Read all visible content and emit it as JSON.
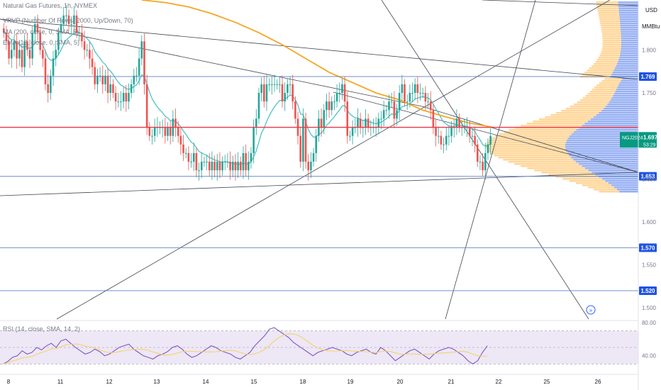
{
  "legend": {
    "symbol": "Natural Gas Futures, 1h, NYMEX",
    "vrvp": "VRVP (Number Of Rows, 2000, Up/Down, 70)",
    "ma": "MA (200, close, 0, SMA, 5)",
    "ema": "EMA (12, close, 0, SMA, 5)",
    "rsi": "RSI (14, close, SMA, 14, 2)"
  },
  "price_scale": {
    "currency": "USD",
    "unit": "MMBtu"
  },
  "colors": {
    "candle_up": "#26a69a",
    "candle_down": "#ef5350",
    "ma200": "#f5a623",
    "ema12": "#4fc3c9",
    "support_lines": "#5b7fc7",
    "resistance_red": "#f23645",
    "trendlines": "#434651",
    "vp_up": "#ffcf86",
    "vp_down": "#7d9cf0",
    "rsi_line": "#7e57c2",
    "rsi_ma": "#f5d46a",
    "rsi_band": "#ede7f6"
  },
  "chart_data": {
    "type": "candlestick",
    "timeframe": "1h",
    "x_ticks": [
      "8",
      "11",
      "12",
      "13",
      "14",
      "15",
      "18",
      "19",
      "20",
      "21",
      "22",
      "25",
      "26"
    ],
    "y_ticks": [
      "1.800",
      "1.750",
      "1.650",
      "1.600",
      "1.550",
      "1.500"
    ],
    "ylim": [
      1.487,
      1.858
    ],
    "last_price_label": {
      "symbol": "NGJ2024",
      "price": "1.697",
      "countdown": "53:29"
    },
    "horizontal_levels": [
      {
        "label": "1.769",
        "value": 1.769,
        "color": "#1e53e5"
      },
      {
        "label": "1.653",
        "value": 1.653,
        "color": "#1e53e5"
      },
      {
        "label": "1.570",
        "value": 1.57,
        "color": "#1e53e5"
      },
      {
        "label": "1.520",
        "value": 1.52,
        "color": "#1e53e5"
      }
    ],
    "red_level": 1.71,
    "close_series": [
      1.82,
      1.81,
      1.79,
      1.8,
      1.81,
      1.79,
      1.8,
      1.78,
      1.81,
      1.8,
      1.79,
      1.82,
      1.83,
      1.82,
      1.8,
      1.79,
      1.76,
      1.75,
      1.77,
      1.79,
      1.8,
      1.82,
      1.83,
      1.84,
      1.84,
      1.83,
      1.83,
      1.84,
      1.82,
      1.82,
      1.81,
      1.8,
      1.8,
      1.79,
      1.78,
      1.76,
      1.77,
      1.77,
      1.76,
      1.77,
      1.75,
      1.76,
      1.75,
      1.74,
      1.74,
      1.74,
      1.75,
      1.74,
      1.75,
      1.76,
      1.77,
      1.77,
      1.79,
      1.81,
      1.76,
      1.71,
      1.7,
      1.7,
      1.71,
      1.71,
      1.71,
      1.71,
      1.7,
      1.71,
      1.7,
      1.72,
      1.71,
      1.7,
      1.69,
      1.68,
      1.68,
      1.67,
      1.67,
      1.68,
      1.66,
      1.66,
      1.67,
      1.67,
      1.67,
      1.66,
      1.67,
      1.66,
      1.67,
      1.66,
      1.67,
      1.67,
      1.67,
      1.66,
      1.67,
      1.66,
      1.67,
      1.66,
      1.68,
      1.66,
      1.67,
      1.68,
      1.71,
      1.72,
      1.75,
      1.76,
      1.74,
      1.76,
      1.76,
      1.76,
      1.76,
      1.76,
      1.76,
      1.74,
      1.75,
      1.76,
      1.76,
      1.74,
      1.72,
      1.7,
      1.67,
      1.72,
      1.67,
      1.66,
      1.67,
      1.68,
      1.7,
      1.72,
      1.71,
      1.73,
      1.74,
      1.73,
      1.74,
      1.74,
      1.75,
      1.75,
      1.76,
      1.74,
      1.7,
      1.7,
      1.71,
      1.71,
      1.72,
      1.71,
      1.71,
      1.72,
      1.71,
      1.71,
      1.71,
      1.71,
      1.72,
      1.72,
      1.73,
      1.73,
      1.74,
      1.74,
      1.72,
      1.73,
      1.75,
      1.76,
      1.74,
      1.74,
      1.75,
      1.75,
      1.76,
      1.75,
      1.75,
      1.75,
      1.74,
      1.74,
      1.73,
      1.71,
      1.7,
      1.7,
      1.69,
      1.69,
      1.7,
      1.7,
      1.71,
      1.71,
      1.72,
      1.71,
      1.71,
      1.71,
      1.71,
      1.7,
      1.7,
      1.69,
      1.67,
      1.67,
      1.66,
      1.68,
      1.69,
      1.7
    ],
    "ma200_series": [
      1.858,
      1.855,
      1.85,
      1.842,
      1.832,
      1.82,
      1.806,
      1.79,
      1.774,
      1.762,
      1.75,
      1.742,
      1.73,
      1.722,
      1.715,
      1.71
    ],
    "rsi": {
      "ylim": [
        20,
        80
      ],
      "ticks": [
        "80.00",
        "40.00"
      ],
      "upper": 70,
      "lower": 30,
      "values": [
        30,
        33,
        38,
        40,
        46,
        42,
        44,
        50,
        47,
        52,
        55,
        50,
        58,
        60,
        55,
        50,
        46,
        42,
        44,
        48,
        45,
        40,
        42,
        46,
        50,
        52,
        54,
        48,
        44,
        40,
        38,
        36,
        40,
        42,
        45,
        50,
        52,
        48,
        42,
        38,
        40,
        44,
        48,
        52,
        50,
        46,
        44,
        42,
        38,
        36,
        40,
        44,
        52,
        58,
        64,
        72,
        74,
        70,
        66,
        62,
        56,
        52,
        48,
        44,
        40,
        44,
        46,
        48,
        50,
        48,
        46,
        42,
        40,
        44,
        46,
        48,
        44,
        42,
        50,
        46,
        40,
        34,
        38,
        42,
        46,
        48,
        44,
        40,
        36,
        42,
        46,
        48,
        50,
        48,
        44,
        40,
        34,
        30,
        34,
        44,
        52
      ]
    }
  }
}
